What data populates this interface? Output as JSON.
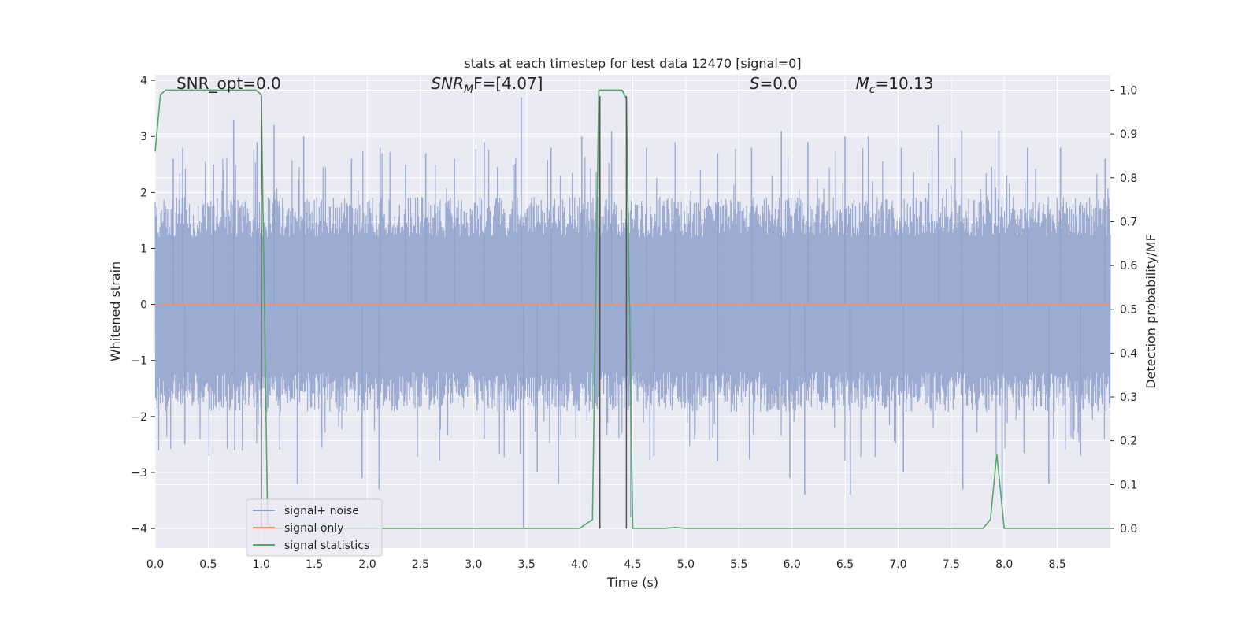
{
  "chart_data": {
    "type": "line",
    "title": "stats at each timestep for test data 12470 [signal=0]",
    "xlabel": "Time (s)",
    "ylabel_left": "Whitened strain",
    "ylabel_right": "Detection probability/MF",
    "xlim": [
      0.0,
      9.0
    ],
    "ylim_left": [
      -4.35,
      4.1
    ],
    "ylim_right": [
      -0.045,
      1.035
    ],
    "grid": true,
    "legend_position": "lower-left",
    "x_ticks": [
      0.0,
      0.5,
      1.0,
      1.5,
      2.0,
      2.5,
      3.0,
      3.5,
      4.0,
      4.5,
      5.0,
      5.5,
      6.0,
      6.5,
      7.0,
      7.5,
      8.0,
      8.5
    ],
    "x_tick_labels": [
      "0.0",
      "0.5",
      "1.0",
      "1.5",
      "2.0",
      "2.5",
      "3.0",
      "3.5",
      "4.0",
      "4.5",
      "5.0",
      "5.5",
      "6.0",
      "6.5",
      "7.0",
      "7.5",
      "8.0",
      "8.5"
    ],
    "y_left_ticks": [
      4,
      3,
      2,
      1,
      0,
      -1,
      -2,
      -3,
      -4
    ],
    "y_left_tick_labels": [
      "4",
      "3",
      "2",
      "1",
      "0",
      "−1",
      "−2",
      "−3",
      "−4"
    ],
    "y_right_ticks": [
      1.0,
      0.9,
      0.8,
      0.7,
      0.6,
      0.5,
      0.4,
      0.3,
      0.2,
      0.1,
      0.0
    ],
    "y_right_tick_labels": [
      "1.0",
      "0.9",
      "0.8",
      "0.7",
      "0.6",
      "0.5",
      "0.4",
      "0.3",
      "0.2",
      "0.1",
      "0.0"
    ],
    "annotations": [
      {
        "text": "SNR_opt=0.0",
        "x": 0.2,
        "y": 3.85
      },
      {
        "text": "SNR_MF=[4.07]",
        "base": "SNR",
        "sub": "M",
        "rest": "F=[4.07]",
        "x": 2.6,
        "y": 3.85
      },
      {
        "text": "S=0.0",
        "base": "S",
        "sub": "",
        "rest": "=0.0",
        "x": 5.6,
        "y": 3.85
      },
      {
        "text": "M_c=10.13",
        "base": "M",
        "sub": "c",
        "rest": "=10.13",
        "x": 6.6,
        "y": 3.85
      }
    ],
    "vertical_markers": [
      {
        "x": 1.0,
        "y_top": 3.72,
        "y_bottom": -4.0
      },
      {
        "x": 4.19,
        "y_top": 3.72,
        "y_bottom": -4.0
      },
      {
        "x": 4.44,
        "y_top": 3.72,
        "y_bottom": -4.0
      }
    ],
    "series": [
      {
        "name": "signal+ noise",
        "color": "#8da0cb",
        "axis": "left",
        "style": "dense noise, envelope approx ±1.6 with spikes to about ±3.3",
        "approx_amplitude": 1.6,
        "noise_spikes_up": [
          [
            0.17,
            2.6
          ],
          [
            0.26,
            2.8
          ],
          [
            0.55,
            2.5
          ],
          [
            0.74,
            3.3
          ],
          [
            0.96,
            2.9
          ],
          [
            1.12,
            3.2
          ],
          [
            1.4,
            3.0
          ],
          [
            1.85,
            2.6
          ],
          [
            2.12,
            2.8
          ],
          [
            2.36,
            2.5
          ],
          [
            2.55,
            2.7
          ],
          [
            2.82,
            2.6
          ],
          [
            3.1,
            2.9
          ],
          [
            3.45,
            3.7
          ],
          [
            3.73,
            2.8
          ],
          [
            4.02,
            3.0
          ],
          [
            4.3,
            3.1
          ],
          [
            4.63,
            2.8
          ],
          [
            4.9,
            2.9
          ],
          [
            5.3,
            2.7
          ],
          [
            5.62,
            2.8
          ],
          [
            5.9,
            3.1
          ],
          [
            6.15,
            2.9
          ],
          [
            6.5,
            3.0
          ],
          [
            6.72,
            3.0
          ],
          [
            7.03,
            2.8
          ],
          [
            7.38,
            3.2
          ],
          [
            7.6,
            3.1
          ],
          [
            7.95,
            3.1
          ],
          [
            8.22,
            2.8
          ],
          [
            8.53,
            2.8
          ],
          [
            8.95,
            2.6
          ]
        ],
        "noise_spikes_down": [
          [
            0.28,
            -2.5
          ],
          [
            0.75,
            -2.6
          ],
          [
            1.34,
            -3.2
          ],
          [
            1.95,
            -3.1
          ],
          [
            2.11,
            -3.3
          ],
          [
            3.47,
            -4.0
          ],
          [
            3.6,
            -3.0
          ],
          [
            3.8,
            -3.2
          ],
          [
            4.48,
            -3.8
          ],
          [
            4.7,
            -2.7
          ],
          [
            5.3,
            -2.8
          ],
          [
            5.98,
            -3.1
          ],
          [
            6.12,
            -3.4
          ],
          [
            6.55,
            -3.4
          ],
          [
            7.05,
            -3.0
          ],
          [
            7.61,
            -3.3
          ],
          [
            7.98,
            -3.5
          ],
          [
            8.42,
            -3.2
          ],
          [
            8.72,
            -2.7
          ]
        ]
      },
      {
        "name": "signal only",
        "color": "#fc8d62",
        "axis": "left",
        "x": [
          0.0,
          9.0
        ],
        "y": [
          0.0,
          0.0
        ]
      },
      {
        "name": "signal statistics",
        "color": "#55a868",
        "axis": "right",
        "x": [
          0.0,
          0.05,
          0.1,
          0.3,
          0.5,
          0.7,
          0.95,
          1.0,
          1.06,
          1.1,
          1.5,
          2.0,
          2.5,
          3.0,
          3.5,
          4.0,
          4.12,
          4.18,
          4.25,
          4.3,
          4.4,
          4.44,
          4.5,
          4.56,
          4.8,
          4.9,
          5.0,
          6.0,
          7.0,
          7.8,
          7.87,
          7.93,
          8.0,
          8.5,
          9.0
        ],
        "y": [
          0.86,
          0.99,
          1.0,
          1.0,
          1.0,
          1.0,
          1.0,
          0.99,
          0.01,
          0.0,
          0.0,
          0.0,
          0.0,
          0.0,
          0.0,
          0.0,
          0.02,
          1.0,
          1.0,
          1.0,
          1.0,
          0.98,
          0.0,
          0.0,
          0.0,
          0.002,
          0.0,
          0.0,
          0.0,
          0.0,
          0.02,
          0.17,
          0.0,
          0.0,
          0.0
        ]
      }
    ]
  }
}
